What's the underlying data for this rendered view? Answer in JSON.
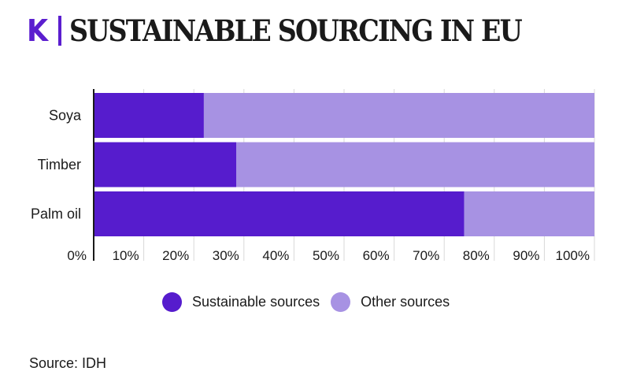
{
  "header": {
    "logo_letter": "K",
    "title": "SUSTAINABLE SOURCING IN EU"
  },
  "chart_data": {
    "type": "bar",
    "orientation": "horizontal",
    "stacked": true,
    "categories": [
      "Soya",
      "Timber",
      "Palm oil"
    ],
    "series": [
      {
        "name": "Sustainable sources",
        "color": "#561ccd",
        "values": [
          22,
          28.5,
          74
        ]
      },
      {
        "name": "Other sources",
        "color": "#a792e3",
        "values": [
          78,
          71.5,
          26
        ]
      }
    ],
    "xlim": [
      0,
      100
    ],
    "x_ticks": [
      "0%",
      "10%",
      "20%",
      "30%",
      "40%",
      "50%",
      "60%",
      "70%",
      "80%",
      "90%",
      "100%"
    ],
    "title": "SUSTAINABLE SOURCING IN EU",
    "xlabel": "",
    "ylabel": "",
    "grid": "vertical",
    "legend_position": "bottom"
  },
  "legend": {
    "items": [
      {
        "label": "Sustainable sources",
        "color": "#561ccd"
      },
      {
        "label": "Other sources",
        "color": "#a792e3"
      }
    ]
  },
  "source": {
    "text": "Source: IDH"
  }
}
